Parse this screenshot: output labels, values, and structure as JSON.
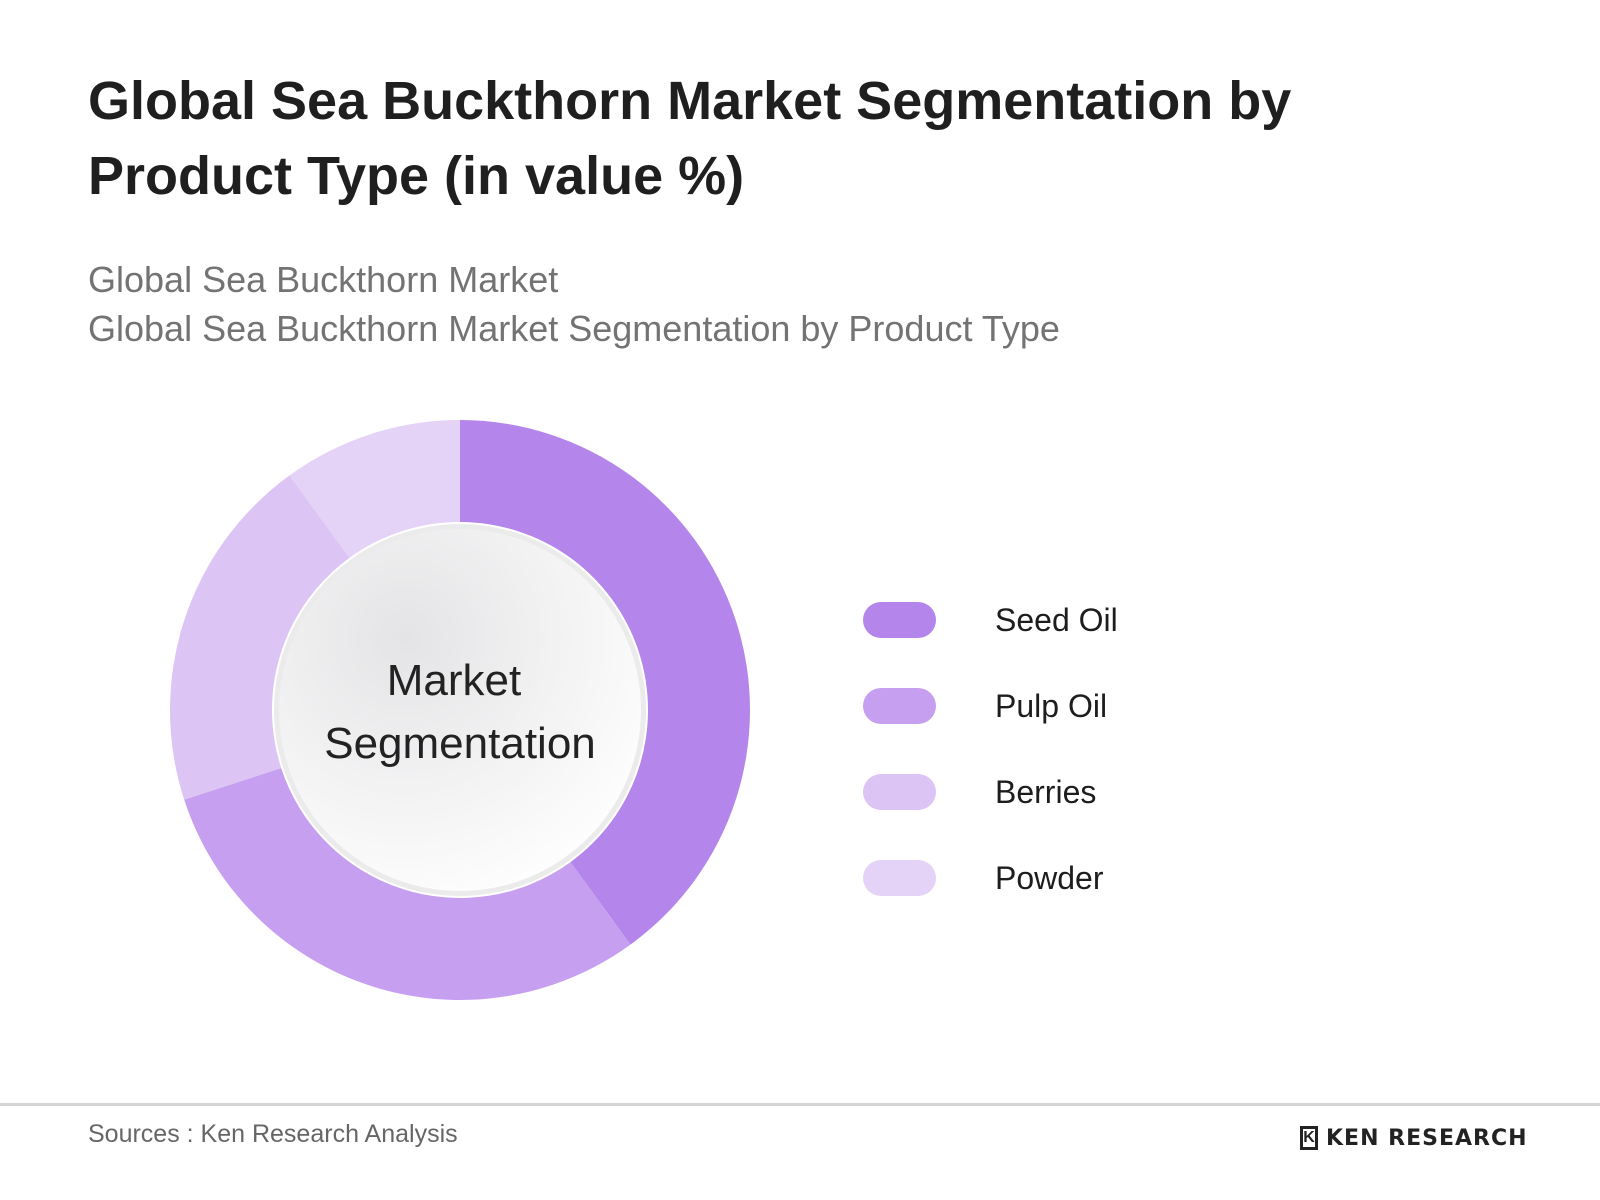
{
  "header": {
    "title": "Global Sea Buckthorn Market Segmentation by Product Type (in value %)",
    "subtitle_1": "Global Sea Buckthorn Market",
    "subtitle_2": "Global Sea Buckthorn Market Segmentation by Product Type"
  },
  "chart_data": {
    "type": "pie",
    "donut": true,
    "center_label": [
      "Market",
      "Segmentation"
    ],
    "categories": [
      "Seed Oil",
      "Pulp Oil",
      "Berries",
      "Powder"
    ],
    "values": [
      40,
      30,
      20,
      10
    ],
    "colors": [
      "#b485eb",
      "#c79ff0",
      "#dcc4f5",
      "#e5d3f7"
    ],
    "legend_position": "right"
  },
  "legend": {
    "items": [
      {
        "label": "Seed Oil",
        "color": "#b485eb"
      },
      {
        "label": "Pulp Oil",
        "color": "#c79ff0"
      },
      {
        "label": "Berries",
        "color": "#dcc4f5"
      },
      {
        "label": "Powder",
        "color": "#e5d3f7"
      }
    ]
  },
  "footer": {
    "sources": "Sources : Ken Research Analysis",
    "brand_mark": "K",
    "brand": "KEN RESEARCH"
  }
}
